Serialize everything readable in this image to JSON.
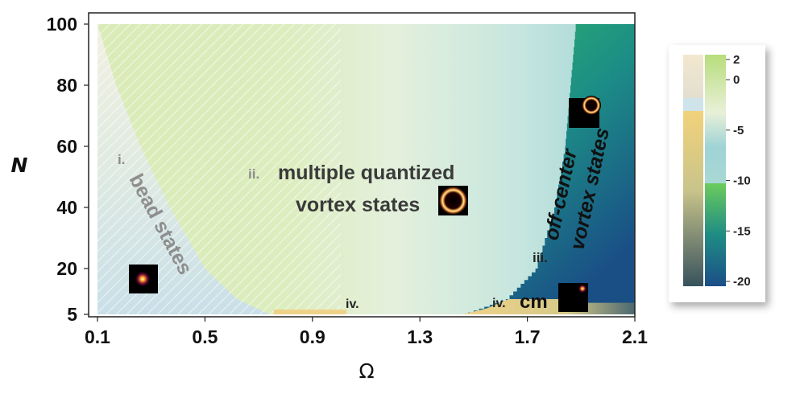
{
  "chart_data": {
    "type": "heatmap",
    "title": "",
    "xlabel": "Ω",
    "ylabel": "N",
    "xlim": [
      0.1,
      2.1
    ],
    "ylim": [
      5,
      100
    ],
    "x_ticks": [
      "0.1",
      "0.5",
      "0.9",
      "1.3",
      "1.7",
      "2.1"
    ],
    "y_ticks": [
      "5",
      "20",
      "40",
      "60",
      "80",
      "100"
    ],
    "grid": false,
    "colorbar": {
      "ticks": [
        "2",
        "0",
        "-5",
        "-10",
        "-15",
        "-20"
      ],
      "range": [
        -20,
        2
      ],
      "position": "right"
    },
    "regions": [
      {
        "id": "i",
        "label": "bead states",
        "hatched": true,
        "boundary_omega_vs_N": [
          [
            0.1,
            100
          ],
          [
            0.17,
            80
          ],
          [
            0.26,
            60
          ],
          [
            0.37,
            40
          ],
          [
            0.5,
            20
          ],
          [
            0.62,
            10
          ],
          [
            0.74,
            5
          ]
        ]
      },
      {
        "id": "ii",
        "label": "multiple quantized vortex states",
        "hatched_until_omega": 1.0,
        "boundary_omega_vs_N": [
          [
            1.88,
            100
          ],
          [
            1.86,
            80
          ],
          [
            1.84,
            60
          ],
          [
            1.8,
            40
          ],
          [
            1.73,
            20
          ],
          [
            1.62,
            10
          ],
          [
            1.46,
            5
          ]
        ]
      },
      {
        "id": "iii",
        "label": "off-center vortex states"
      },
      {
        "id": "iv",
        "label": "cm",
        "N_max": 10
      }
    ]
  },
  "annotations": {
    "region_i_label": "i.",
    "region_i_text": "bead states",
    "region_ii_label": "ii.",
    "region_ii_text_line1": "multiple quantized",
    "region_ii_text_line2": "vortex states",
    "region_iii_label": "iii.",
    "region_iii_text_line1": "off-center",
    "region_iii_text_line2": "vortex states",
    "region_iv_label_left": "iv.",
    "region_iv_label_right": "iv.",
    "region_iv_text": "cm"
  },
  "colors": {
    "bead": "#cfe2e8",
    "bead_top": "#eef0e0",
    "mq_left": "#d8e9b5",
    "mq_mid": "#e2efd7",
    "mq_right": "#a8d6d8",
    "offcenter_top": "#37b36a",
    "offcenter_bottom": "#1a4f85",
    "cm": "#e9d189",
    "cm_right": "#4c6a72"
  }
}
